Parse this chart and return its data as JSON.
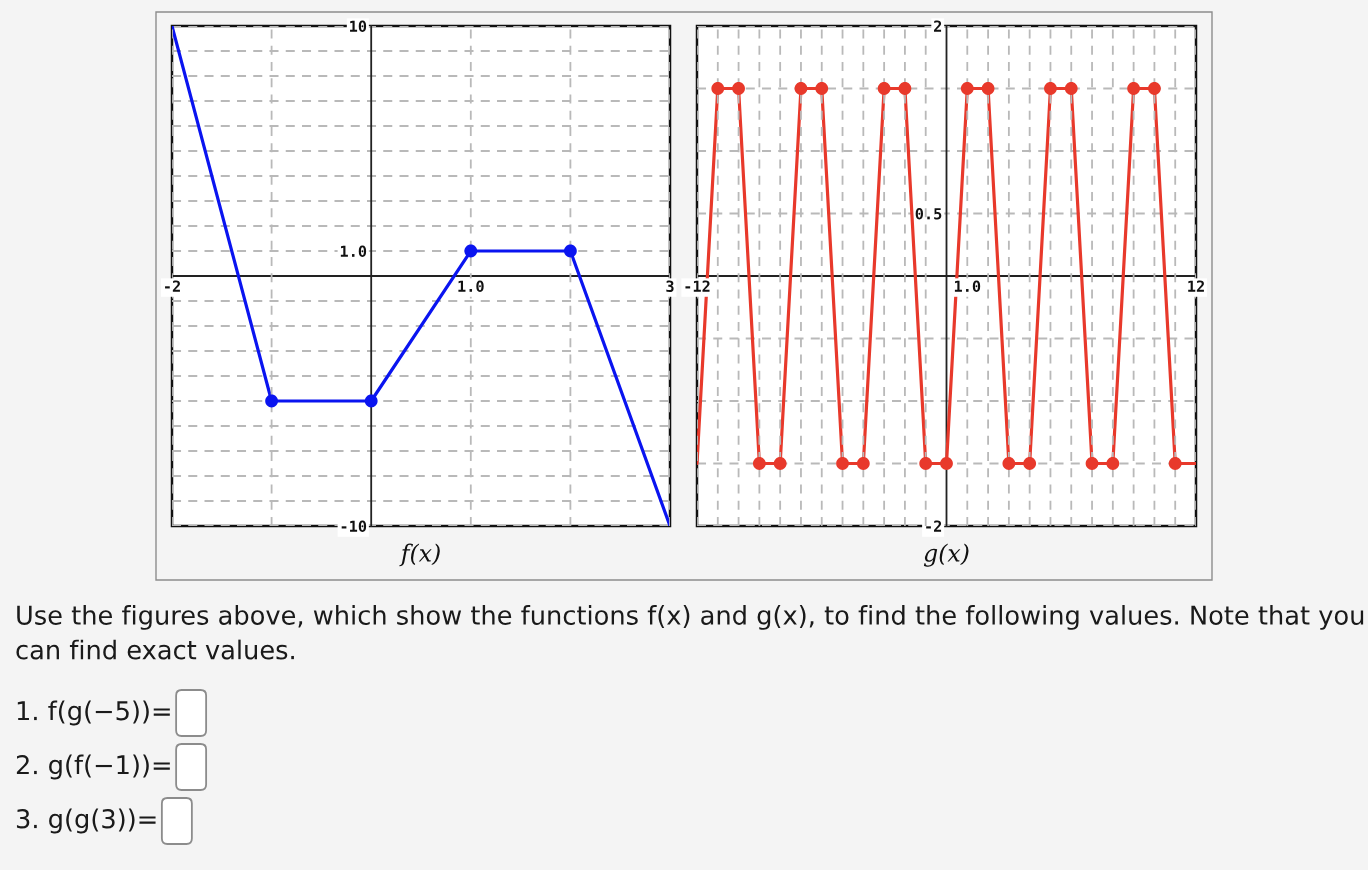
{
  "chart_data": [
    {
      "type": "line",
      "xlabel": "f(x)",
      "x": [
        -2,
        -1,
        0,
        1,
        2,
        3
      ],
      "marker": "circle",
      "grid": true,
      "series": [
        {
          "color": "#0a14f0",
          "values": [
            10,
            -5,
            -5,
            1,
            1,
            -10
          ],
          "marker": "none"
        },
        {
          "type": "scatter",
          "color": "#0a14f0",
          "x": [
            -1,
            0,
            1,
            2
          ],
          "values": [
            -5,
            -5,
            1,
            1
          ]
        }
      ],
      "xlim": [
        -2,
        3
      ],
      "ylim": [
        -10,
        10
      ],
      "xticks": [
        -2,
        {
          "value": -1,
          "label": null
        },
        {
          "value": 1,
          "label": "1.0"
        },
        {
          "value": 2,
          "label": null
        },
        3
      ],
      "yticks": [
        -10,
        {
          "value": -9,
          "label": null
        },
        {
          "value": -8,
          "label": null
        },
        {
          "value": -7,
          "label": null
        },
        {
          "value": -6,
          "label": null
        },
        {
          "value": -5,
          "label": null
        },
        {
          "value": -4,
          "label": null
        },
        {
          "value": -3,
          "label": null
        },
        {
          "value": -2,
          "label": null
        },
        {
          "value": -1,
          "label": null
        },
        {
          "value": 1,
          "label": "1.0"
        },
        {
          "value": 2,
          "label": null
        },
        {
          "value": 3,
          "label": null
        },
        {
          "value": 4,
          "label": null
        },
        {
          "value": 5,
          "label": null
        },
        {
          "value": 6,
          "label": null
        },
        {
          "value": 7,
          "label": null
        },
        {
          "value": 8,
          "label": null
        },
        {
          "value": 9,
          "label": null
        },
        10
      ]
    },
    {
      "type": "line",
      "xlabel": "g(x)",
      "x": [
        -12,
        -11,
        -10,
        -9,
        -8,
        -7,
        -6,
        -5,
        -4,
        -3,
        -2,
        -1,
        0,
        1,
        2,
        3,
        4,
        5,
        6,
        7,
        8,
        9,
        10,
        11,
        12
      ],
      "marker": "circle",
      "grid": true,
      "series": [
        {
          "color": "#e8392b",
          "values": [
            -1.5,
            1.5,
            1.5,
            -1.5,
            -1.5,
            1.5,
            1.5,
            -1.5,
            -1.5,
            1.5,
            1.5,
            -1.5,
            -1.5,
            1.5,
            1.5,
            -1.5,
            -1.5,
            1.5,
            1.5,
            -1.5,
            -1.5,
            1.5,
            1.5,
            -1.5,
            -1.5
          ],
          "marker": "none"
        },
        {
          "type": "scatter",
          "color": "#e8392b",
          "x": [
            -11,
            -10,
            -9,
            -8,
            -7,
            -6,
            -5,
            -4,
            -3,
            -2,
            -1,
            0,
            1,
            2,
            3,
            4,
            5,
            6,
            7,
            8,
            9,
            10,
            11
          ],
          "values": [
            1.5,
            1.5,
            -1.5,
            -1.5,
            1.5,
            1.5,
            -1.5,
            -1.5,
            1.5,
            1.5,
            -1.5,
            -1.5,
            1.5,
            1.5,
            -1.5,
            -1.5,
            1.5,
            1.5,
            -1.5,
            -1.5,
            1.5,
            1.5,
            -1.5
          ]
        }
      ],
      "xlim": [
        -12,
        12
      ],
      "ylim": [
        -2,
        2
      ],
      "xticks": [
        -12,
        {
          "value": -11,
          "label": null
        },
        {
          "value": -10,
          "label": null
        },
        {
          "value": -9,
          "label": null
        },
        {
          "value": -8,
          "label": null
        },
        {
          "value": -7,
          "label": null
        },
        {
          "value": -6,
          "label": null
        },
        {
          "value": -5,
          "label": null
        },
        {
          "value": -4,
          "label": null
        },
        {
          "value": -3,
          "label": null
        },
        {
          "value": -2,
          "label": null
        },
        {
          "value": -1,
          "label": null
        },
        {
          "value": 1,
          "label": "1.0"
        },
        {
          "value": 2,
          "label": null
        },
        {
          "value": 3,
          "label": null
        },
        {
          "value": 4,
          "label": null
        },
        {
          "value": 5,
          "label": null
        },
        {
          "value": 6,
          "label": null
        },
        {
          "value": 7,
          "label": null
        },
        {
          "value": 8,
          "label": null
        },
        {
          "value": 9,
          "label": null
        },
        {
          "value": 10,
          "label": null
        },
        {
          "value": 11,
          "label": null
        },
        12
      ],
      "yticks": [
        -2,
        {
          "value": -1.5,
          "label": null
        },
        {
          "value": -1,
          "label": null
        },
        {
          "value": -0.5,
          "label": null
        },
        0.5,
        {
          "value": 1,
          "label": null
        },
        {
          "value": 1.5,
          "label": null
        },
        2
      ]
    },
    {
      "type": "other",
      "annotations": [
        "Use the figures above, which show the functions f(x) and g(x), to find the following values. Note that you can find exact values.",
        "1. f(g(−5))=",
        "2. g(f(−1))=",
        "3. g(g(3))="
      ]
    }
  ]
}
